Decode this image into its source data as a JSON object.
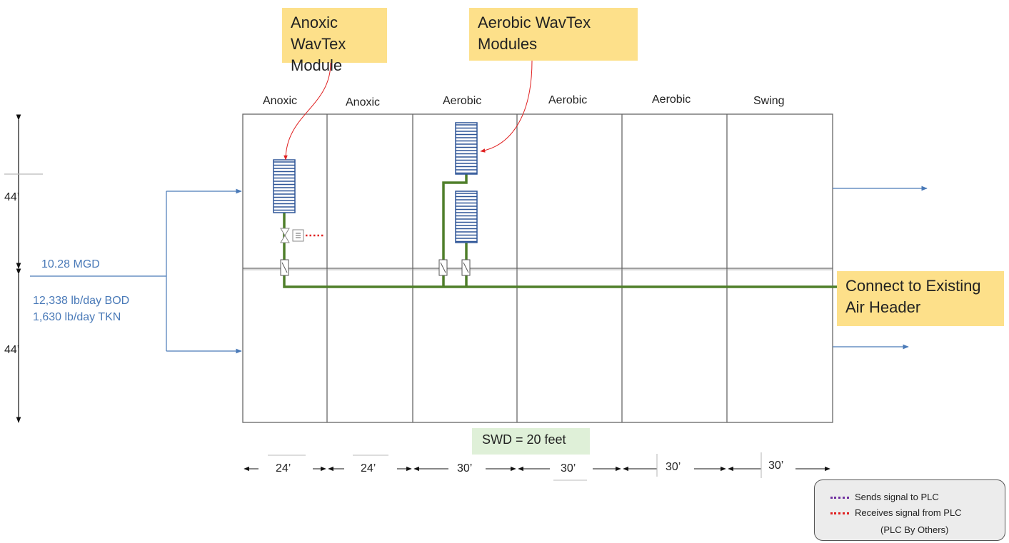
{
  "callouts": {
    "anoxic_module": "Anoxic WavTex Module",
    "aerobic_modules": "Aerobic WavTex Modules",
    "air_header": "Connect to Existing Air Header"
  },
  "zones": [
    "Anoxic",
    "Anoxic",
    "Aerobic",
    "Aerobic",
    "Aerobic",
    "Swing"
  ],
  "influent": {
    "flow": "10.28 MGD",
    "bod": "12,338 lb/day BOD",
    "tkn": "1,630 lb/day TKN"
  },
  "heights": {
    "upper": "44’",
    "lower": "44’"
  },
  "widths": [
    "24’",
    "24’",
    "30’",
    "30’",
    "30’",
    "30’"
  ],
  "swd": "SWD = 20 feet",
  "legend": {
    "sends": "Sends signal to PLC",
    "receives": "Receives signal from PLC",
    "note": "(PLC By Others)",
    "sends_color": "#7030a0",
    "receives_color": "#e02020"
  },
  "colors": {
    "pipe": "#4f7f2a",
    "diffuser": "#2e5597",
    "flow_arrow": "#4a7ab8",
    "callout_arrow": "#e02020",
    "callout_bg": "#fde08a"
  }
}
